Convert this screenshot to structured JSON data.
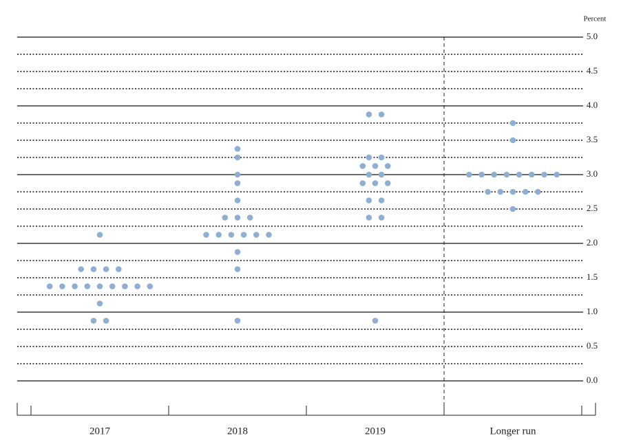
{
  "chart_data": {
    "type": "dot",
    "y_label": "Percent",
    "categories": [
      "2017",
      "2018",
      "2019",
      "Longer run"
    ],
    "values": [
      [
        2.125,
        1.625,
        1.625,
        1.625,
        1.625,
        1.375,
        1.375,
        1.375,
        1.375,
        1.375,
        1.375,
        1.375,
        1.375,
        1.375,
        1.125,
        0.875,
        0.875
      ],
      [
        3.375,
        3.25,
        3.0,
        2.875,
        2.625,
        2.375,
        2.375,
        2.375,
        2.125,
        2.125,
        2.125,
        2.125,
        2.125,
        2.125,
        1.875,
        1.625,
        0.875
      ],
      [
        3.875,
        3.875,
        3.25,
        3.25,
        3.125,
        3.125,
        3.125,
        3.0,
        3.0,
        2.875,
        2.875,
        2.875,
        2.625,
        2.625,
        2.375,
        2.375,
        0.875
      ],
      [
        3.75,
        3.5,
        3.0,
        3.0,
        3.0,
        3.0,
        3.0,
        3.0,
        3.0,
        3.0,
        2.75,
        2.75,
        2.75,
        2.75,
        2.75,
        2.5
      ]
    ],
    "color": "#8eafd3",
    "ylim": [
      0,
      5
    ],
    "yticks": [
      {
        "value": 0,
        "label": "0.0"
      },
      0.5,
      {
        "value": 1,
        "label": "1.0"
      },
      1.5,
      {
        "value": 2,
        "label": "2.0"
      },
      2.5,
      {
        "value": 3,
        "label": "3.0"
      },
      3.5,
      {
        "value": 4,
        "label": "4.0"
      },
      4.5,
      {
        "value": 5,
        "label": "5.0"
      }
    ],
    "minor_yticks": [
      0.25,
      0.75,
      1.25,
      1.75,
      2.25,
      2.75,
      3.25,
      3.75,
      4.25,
      4.75
    ],
    "grid": true
  }
}
